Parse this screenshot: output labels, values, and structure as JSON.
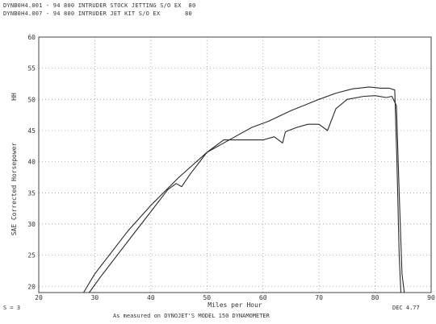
{
  "header": {
    "line1": "DYNB0H4.001 - 94 800 INTRUDER STOCK JETTING S/O EX  80",
    "line2": "DYNB0H4.007 - 94 800 INTRUDER JET KIT S/O EX       80"
  },
  "footer": {
    "left": "S = 3",
    "right": "DEC 4.77",
    "credit": "As measured on DYNOJET'S MODEL 150 DYNAMOMETER"
  },
  "chart_data": {
    "type": "line",
    "xlabel": "Miles per Hour",
    "ylabel": "SAE Corrected Horsepower",
    "ylabel_mark": "HH",
    "xlim": [
      20,
      90
    ],
    "ylim": [
      19,
      60
    ],
    "xticks": [
      "20",
      "30",
      "40",
      "50",
      "60",
      "70",
      "80",
      "90"
    ],
    "yticks": [
      "20",
      "25",
      "30",
      "35",
      "40",
      "45",
      "50",
      "55",
      "60"
    ],
    "grid": true,
    "series": [
      {
        "x": [
          28,
          30,
          33,
          36,
          40,
          45,
          50,
          55,
          58,
          61,
          65,
          70,
          73,
          76,
          79,
          81,
          82.5,
          83.5,
          83.9,
          84.3,
          84.6
        ],
        "y": [
          19,
          22,
          25.5,
          29,
          33,
          37.5,
          41.5,
          44,
          45.5,
          46.5,
          48.2,
          50,
          51,
          51.7,
          52,
          51.8,
          51.8,
          51.5,
          40,
          25,
          19
        ]
      },
      {
        "x": [
          29,
          31,
          34,
          37,
          40,
          43,
          44.5,
          45.5,
          47,
          50,
          53,
          56,
          60,
          62,
          63.5,
          64,
          66,
          68,
          70,
          71.5,
          73,
          75,
          78,
          80,
          82,
          83,
          83.8,
          84.3,
          84.8,
          85.2
        ],
        "y": [
          19,
          21.5,
          25,
          28.5,
          32,
          35.5,
          36.5,
          36,
          38,
          41.5,
          43.5,
          43.5,
          43.5,
          44,
          43,
          44.8,
          45.5,
          46,
          46,
          45,
          48.5,
          50,
          50.5,
          50.6,
          50.3,
          50.5,
          49,
          35,
          22,
          19
        ]
      }
    ]
  }
}
